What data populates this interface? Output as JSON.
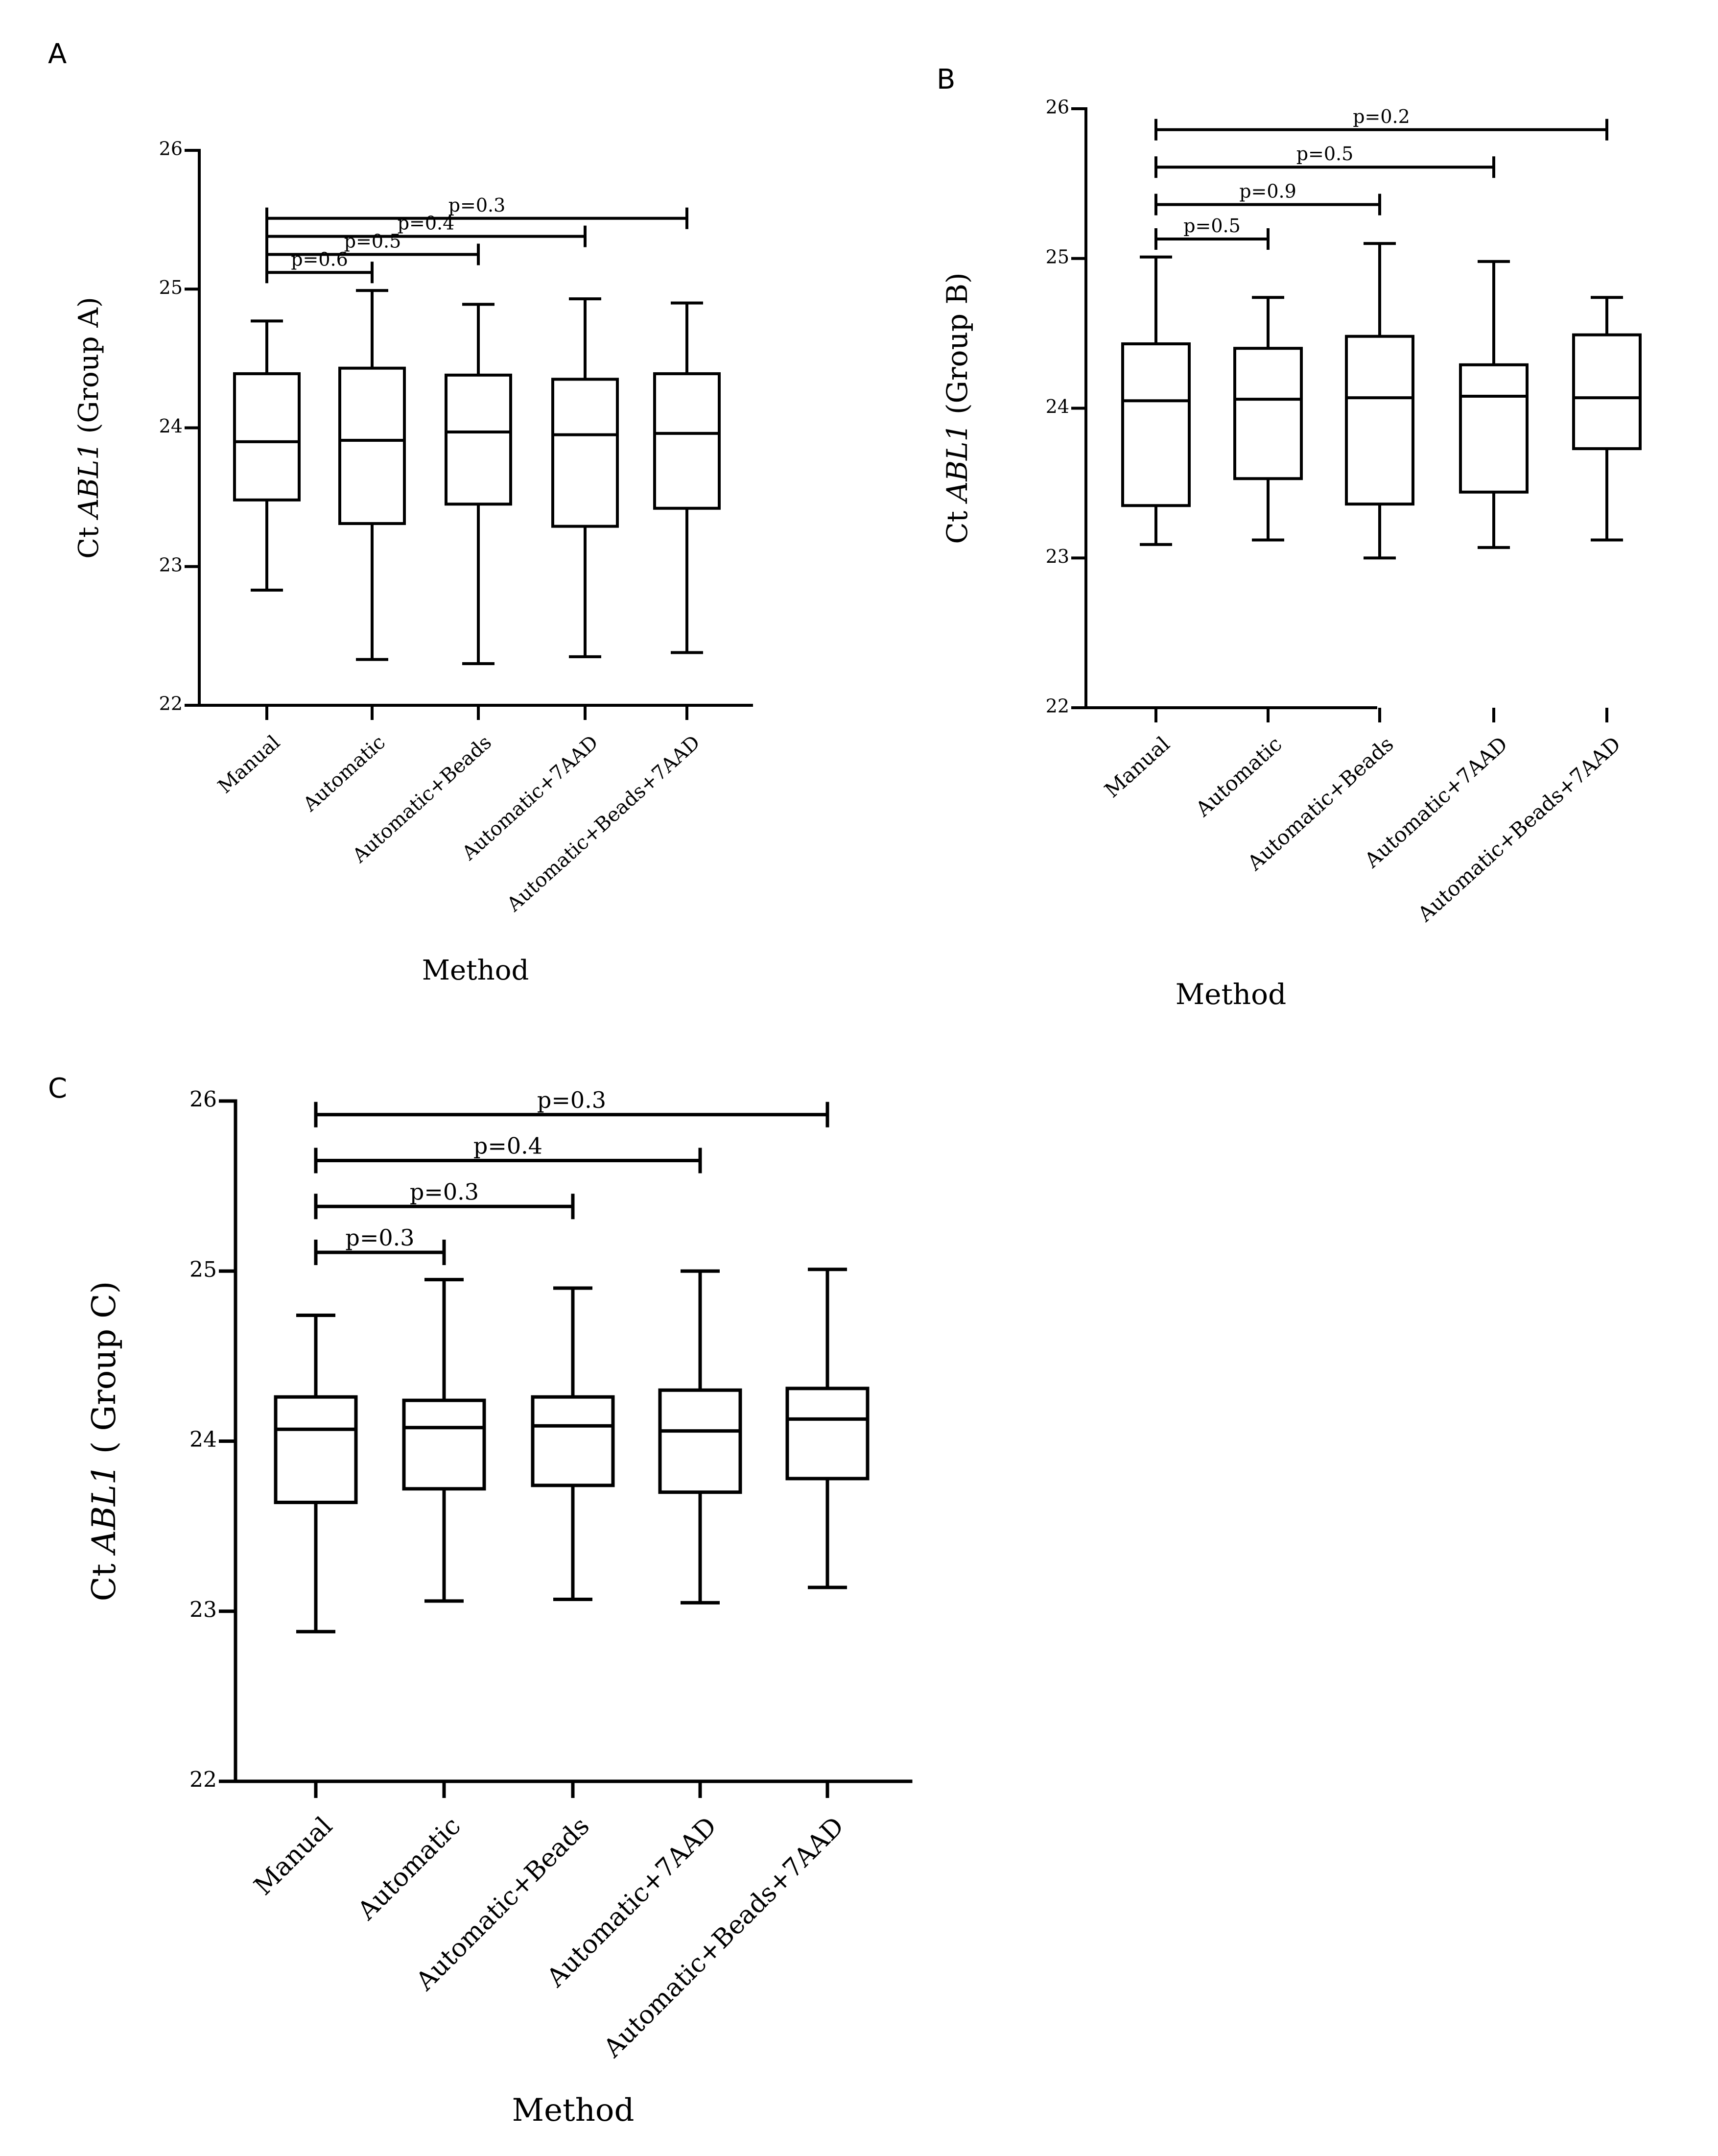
{
  "chart_data": [
    {
      "panel_label": "A",
      "type": "box",
      "xlabel": "Method",
      "ylabel_prefix": "Ct ",
      "ylabel_gene": "ABL1",
      "ylabel_suffix": " (Group A)",
      "ylim": [
        22,
        26
      ],
      "yticks": [
        "22",
        "23",
        "24",
        "25",
        "26"
      ],
      "categories": [
        "Manual",
        "Automatic",
        "Automatic+Beads",
        "Automatic+7AAD",
        "Automatic+Beads+7AAD"
      ],
      "boxes": [
        {
          "min": 22.83,
          "q1": 23.48,
          "median": 23.9,
          "q3": 24.39,
          "max": 24.77
        },
        {
          "min": 22.33,
          "q1": 23.31,
          "median": 23.91,
          "q3": 24.43,
          "max": 24.99
        },
        {
          "min": 22.3,
          "q1": 23.45,
          "median": 23.97,
          "q3": 24.38,
          "max": 24.89
        },
        {
          "min": 22.35,
          "q1": 23.29,
          "median": 23.95,
          "q3": 24.35,
          "max": 24.93
        },
        {
          "min": 22.38,
          "q1": 23.42,
          "median": 23.96,
          "q3": 24.39,
          "max": 24.9
        }
      ],
      "comparisons": [
        {
          "from": 0,
          "to": 1,
          "y": 25.12,
          "label": "p=0.6"
        },
        {
          "from": 0,
          "to": 2,
          "y": 25.25,
          "label": "p=0.5"
        },
        {
          "from": 0,
          "to": 3,
          "y": 25.38,
          "label": "p=0.4"
        },
        {
          "from": 0,
          "to": 4,
          "y": 25.51,
          "label": "p=0.3"
        }
      ]
    },
    {
      "panel_label": "B",
      "type": "box",
      "xlabel": "Method",
      "ylabel_prefix": "Ct ",
      "ylabel_gene": "ABL1",
      "ylabel_suffix": " (Group B)",
      "ylim": [
        22,
        26
      ],
      "yticks": [
        "22",
        "23",
        "24",
        "25",
        "26"
      ],
      "categories": [
        "Manual",
        "Automatic",
        "Automatic+Beads",
        "Automatic+7AAD",
        "Automatic+Beads+7AAD"
      ],
      "boxes": [
        {
          "min": 23.09,
          "q1": 23.35,
          "median": 24.05,
          "q3": 24.43,
          "max": 25.01
        },
        {
          "min": 23.12,
          "q1": 23.53,
          "median": 24.06,
          "q3": 24.4,
          "max": 24.74
        },
        {
          "min": 23.0,
          "q1": 23.36,
          "median": 24.07,
          "q3": 24.48,
          "max": 25.1
        },
        {
          "min": 23.07,
          "q1": 23.44,
          "median": 24.08,
          "q3": 24.29,
          "max": 24.98
        },
        {
          "min": 23.12,
          "q1": 23.73,
          "median": 24.07,
          "q3": 24.49,
          "max": 24.74
        }
      ],
      "comparisons": [
        {
          "from": 0,
          "to": 1,
          "y": 25.13,
          "label": "p=0.5"
        },
        {
          "from": 0,
          "to": 2,
          "y": 25.36,
          "label": "p=0.9"
        },
        {
          "from": 0,
          "to": 3,
          "y": 25.61,
          "label": "p=0.5"
        },
        {
          "from": 0,
          "to": 4,
          "y": 25.86,
          "label": "p=0.2"
        }
      ]
    },
    {
      "panel_label": "C",
      "type": "box",
      "xlabel": "Method",
      "ylabel_prefix": "Ct ",
      "ylabel_gene": "ABL1",
      "ylabel_suffix": " ( Group C)",
      "ylim": [
        22,
        26
      ],
      "yticks": [
        "22",
        "23",
        "24",
        "25",
        "26"
      ],
      "categories": [
        "Manual",
        "Automatic",
        "Automatic+Beads",
        "Automatic+7AAD",
        "Automatic+Beads+7AAD"
      ],
      "boxes": [
        {
          "min": 22.88,
          "q1": 23.64,
          "median": 24.07,
          "q3": 24.26,
          "max": 24.74
        },
        {
          "min": 23.06,
          "q1": 23.72,
          "median": 24.08,
          "q3": 24.24,
          "max": 24.95
        },
        {
          "min": 23.07,
          "q1": 23.74,
          "median": 24.09,
          "q3": 24.26,
          "max": 24.9
        },
        {
          "min": 23.05,
          "q1": 23.7,
          "median": 24.06,
          "q3": 24.3,
          "max": 25.0
        },
        {
          "min": 23.14,
          "q1": 23.78,
          "median": 24.13,
          "q3": 24.31,
          "max": 25.01
        }
      ],
      "comparisons": [
        {
          "from": 0,
          "to": 1,
          "y": 25.11,
          "label": "p=0.3"
        },
        {
          "from": 0,
          "to": 2,
          "y": 25.38,
          "label": "p=0.3"
        },
        {
          "from": 0,
          "to": 3,
          "y": 25.65,
          "label": "p=0.4"
        },
        {
          "from": 0,
          "to": 4,
          "y": 25.92,
          "label": "p=0.3"
        }
      ]
    }
  ]
}
